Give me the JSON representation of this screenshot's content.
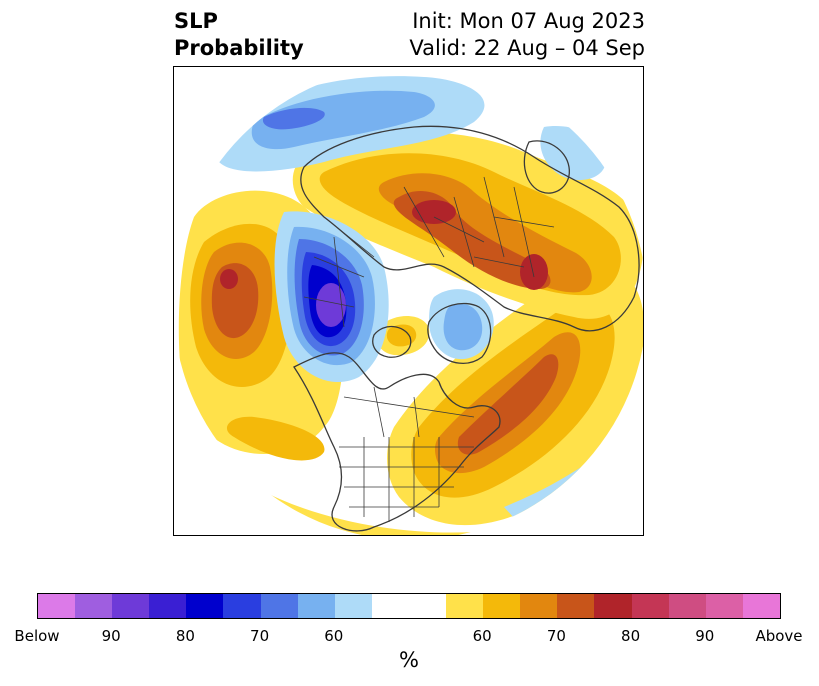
{
  "title": {
    "variable_line1": "SLP",
    "variable_line2": "Probability",
    "init": "Init: Mon 07 Aug 2023",
    "valid": "Valid: 22 Aug – 04 Sep"
  },
  "map": {
    "projection": "north-polar-stereographic",
    "features": [
      "coastlines",
      "country-borders",
      "us-state-borders"
    ],
    "anomaly_centers": [
      {
        "region": "northeast-pacific",
        "category": "above"
      },
      {
        "region": "northern-europe-scandinavia",
        "category": "above"
      },
      {
        "region": "western-russia",
        "category": "above"
      },
      {
        "region": "eastern-north-america-north-atlantic",
        "category": "above"
      },
      {
        "region": "siberia-east-asia",
        "category": "below"
      },
      {
        "region": "greenland",
        "category": "below"
      }
    ]
  },
  "colorbar": {
    "unit": "%",
    "tick_labels": [
      "Below",
      "90",
      "80",
      "70",
      "60",
      "60",
      "70",
      "80",
      "90",
      "Above"
    ],
    "colors": [
      "#dc7ae8",
      "#9f5ee0",
      "#6e3ad8",
      "#3a1fd3",
      "#0000cd",
      "#2a3ee0",
      "#4f75e6",
      "#77b1f0",
      "#aedbf8",
      "#ffffff",
      "#ffe14a",
      "#f4b90a",
      "#e2870f",
      "#c8551a",
      "#b0242a",
      "#c43655",
      "#cf4d82",
      "#dc60a6",
      "#e876d8"
    ]
  }
}
